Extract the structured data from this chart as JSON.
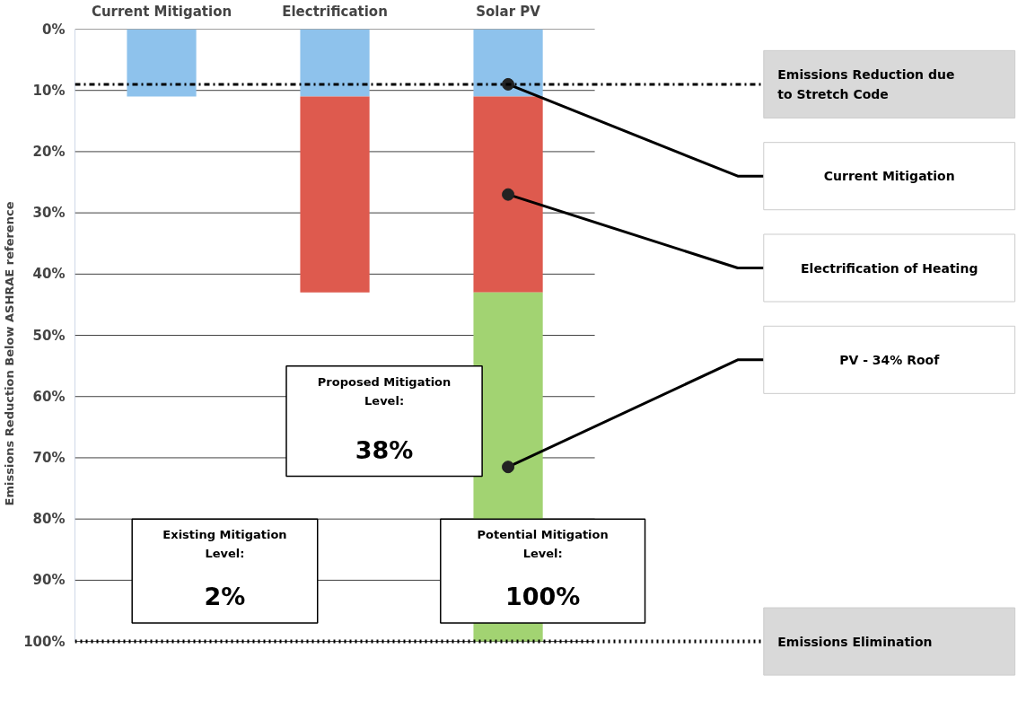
{
  "chart_data": {
    "type": "bar",
    "stacked": true,
    "categories": [
      "Current Mitigation",
      "Electrification",
      "Solar PV"
    ],
    "ylabel": "Emissions Reduction Below ASHRAE reference",
    "series": [
      {
        "name": "Current Mitigation",
        "color": "#8ec2ec",
        "values": [
          11,
          11,
          11
        ]
      },
      {
        "name": "Electrification of Heating",
        "color": "#de5a4e",
        "values": [
          null,
          32,
          32
        ]
      },
      {
        "name": "PV - 34% Roof",
        "color": "#a2d372",
        "values": [
          null,
          null,
          57
        ]
      }
    ],
    "ylim": [
      100,
      0
    ],
    "yticks": [
      {
        "value": 0,
        "label": "0%"
      },
      {
        "value": 10,
        "label": "10%"
      },
      {
        "value": 20,
        "label": "20%"
      },
      {
        "value": 30,
        "label": "30%"
      },
      {
        "value": 40,
        "label": "40%"
      },
      {
        "value": 50,
        "label": "50%"
      },
      {
        "value": 60,
        "label": "60%"
      },
      {
        "value": 70,
        "label": "70%"
      },
      {
        "value": 80,
        "label": "80%"
      },
      {
        "value": 90,
        "label": "90%"
      },
      {
        "value": 100,
        "label": "100%"
      }
    ],
    "grid": "y",
    "ref_lines": [
      {
        "axis": "y",
        "value": 9,
        "label": "Emissions Reduction due to Stretch Code",
        "color": "#000000",
        "line_style": "dashdot"
      },
      {
        "axis": "y",
        "value": 100,
        "label": "Emissions Elimination",
        "color": "#000000",
        "line_style": "dotted"
      }
    ],
    "annotations": [
      "Existing Mitigation\nLevel:",
      "2%",
      "Proposed Mitigation\nLevel:",
      "38%",
      "Potential Mitigation\nLevel:",
      "100%"
    ]
  }
}
